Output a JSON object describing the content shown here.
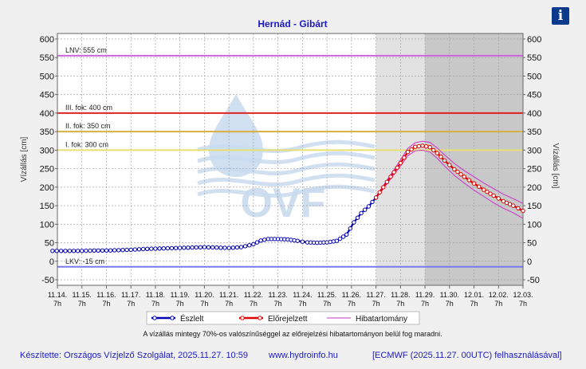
{
  "info_button": {
    "label": "i"
  },
  "footer": {
    "author": "Készítette: Országos Vízjelző Szolgálat, 2025.11.27. 10:59",
    "website": "www.hydroinfo.hu",
    "model": "[ECMWF (2025.11.27. 00UTC) felhasználásával]"
  },
  "watermark": {
    "text": "OVF"
  },
  "chart_data": {
    "type": "line",
    "title": "Hernád - Gibárt",
    "ylabel": "Vízállás [cm]",
    "ylabel_right": "Vízállás [cm]",
    "ylim": [
      -65,
      615
    ],
    "yticks": [
      -50,
      0,
      50,
      100,
      150,
      200,
      250,
      300,
      350,
      400,
      450,
      500,
      550,
      600
    ],
    "xlim": [
      0,
      19
    ],
    "x_unit_note": "days since 11.14. 7h",
    "xticks": [
      {
        "day": "11.14.",
        "hour": "7h"
      },
      {
        "day": "11.15.",
        "hour": "7h"
      },
      {
        "day": "11.16.",
        "hour": "7h"
      },
      {
        "day": "11.17.",
        "hour": "7h"
      },
      {
        "day": "11.18.",
        "hour": "7h"
      },
      {
        "day": "11.19.",
        "hour": "7h"
      },
      {
        "day": "11.20.",
        "hour": "7h"
      },
      {
        "day": "11.21.",
        "hour": "7h"
      },
      {
        "day": "11.22.",
        "hour": "7h"
      },
      {
        "day": "11.23.",
        "hour": "7h"
      },
      {
        "day": "11.24.",
        "hour": "7h"
      },
      {
        "day": "11.25.",
        "hour": "7h"
      },
      {
        "day": "11.26.",
        "hour": "7h"
      },
      {
        "day": "11.27.",
        "hour": "7h"
      },
      {
        "day": "11.28.",
        "hour": "7h"
      },
      {
        "day": "11.29.",
        "hour": "7h"
      },
      {
        "day": "11.30.",
        "hour": "7h"
      },
      {
        "day": "12.01.",
        "hour": "7h"
      },
      {
        "day": "12.02.",
        "hour": "7h"
      },
      {
        "day": "12.03.",
        "hour": "7h"
      }
    ],
    "grid": true,
    "shaded_regions": [
      {
        "from": 13,
        "to": 15,
        "color": "#e2e2e2"
      },
      {
        "from": 15,
        "to": 19,
        "color": "#c8c8c8"
      }
    ],
    "reference_lines": [
      {
        "label": "LNV: 555 cm",
        "value": 555,
        "color": "#cc66dd"
      },
      {
        "label": "III. fok: 400 cm",
        "value": 400,
        "color": "#dd2222"
      },
      {
        "label": "II. fok: 350 cm",
        "value": 350,
        "color": "#d8b040"
      },
      {
        "label": "I. fok: 300 cm",
        "value": 300,
        "color": "#e8e070"
      },
      {
        "label": "LKV: -15 cm",
        "value": -15,
        "color": "#7a7af0"
      }
    ],
    "series": [
      {
        "name": "Észlelt",
        "color": "#0000b0",
        "x": [
          -0.2,
          0.5,
          1,
          1.5,
          2,
          2.5,
          3,
          3.5,
          4,
          4.5,
          5,
          5.5,
          6,
          6.5,
          7,
          7.5,
          8,
          8.3,
          8.6,
          9,
          9.4,
          9.8,
          10.2,
          10.6,
          11,
          11.4,
          11.8,
          12.1,
          12.4,
          12.7,
          13
        ],
        "y": [
          28,
          28,
          28,
          29,
          29,
          30,
          31,
          33,
          34,
          35,
          36,
          37,
          38,
          37,
          36,
          38,
          46,
          56,
          60,
          60,
          59,
          55,
          51,
          50,
          51,
          55,
          72,
          105,
          130,
          148,
          172
        ]
      },
      {
        "name": "Előrejelzett",
        "color": "#dd0000",
        "x": [
          13,
          13.3,
          13.6,
          14,
          14.3,
          14.6,
          14.9,
          15.2,
          15.5,
          15.8,
          16.2,
          16.6,
          17,
          17.4,
          17.8,
          18.2,
          18.6,
          19
        ],
        "y": [
          172,
          200,
          228,
          265,
          295,
          309,
          312,
          308,
          292,
          272,
          248,
          228,
          210,
          193,
          177,
          162,
          150,
          136
        ]
      }
    ],
    "error_band": {
      "name": "Hibatartomány",
      "color": "#cc33cc",
      "x": [
        13,
        13.3,
        13.6,
        14,
        14.3,
        14.6,
        14.9,
        15.2,
        15.5,
        15.8,
        16.2,
        16.6,
        17,
        17.4,
        17.8,
        18.2,
        18.6,
        19
      ],
      "upper": [
        174,
        204,
        234,
        273,
        305,
        320,
        324,
        321,
        306,
        287,
        264,
        245,
        228,
        211,
        196,
        181,
        169,
        156
      ],
      "lower": [
        170,
        196,
        222,
        257,
        285,
        298,
        300,
        295,
        278,
        257,
        232,
        211,
        192,
        175,
        158,
        143,
        131,
        116
      ]
    },
    "legend": {
      "placement": "bottom",
      "entries": [
        "Észlelt",
        "Előrejelzett",
        "Hibatartomány"
      ]
    },
    "annotation": "A vízállás mintegy 70%-os valószínűséggel az előrejelzési hibatartományon belül fog maradni."
  }
}
